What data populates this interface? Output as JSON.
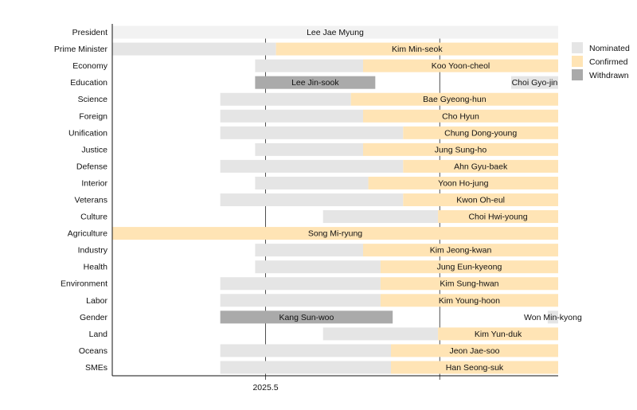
{
  "chart_data": {
    "type": "gantt",
    "title": "",
    "xlabel": "",
    "ylabel": "",
    "xlim": [
      2025.412,
      2025.668
    ],
    "xticks": [
      {
        "value": 2025.5,
        "label": "2025.5"
      },
      {
        "value": 2025.6,
        "label": ""
      }
    ],
    "grid": "vertical lines at ticks",
    "legend_placement": "right",
    "colors": {
      "Incumbent": "#f2f2f2",
      "Nominated": "#e5e5e5",
      "Confirmed": "#ffe4b5",
      "Withdrawn": "#aaaaaa"
    },
    "legend": [
      "Nominated",
      "Confirmed",
      "Withdrawn"
    ],
    "rows": [
      {
        "ministry": "President",
        "segments": [
          {
            "status": "Incumbent",
            "start": 2025.412,
            "end": 2025.668,
            "label": "Lee Jae Myung"
          }
        ]
      },
      {
        "ministry": "Prime Minister",
        "segments": [
          {
            "status": "Nominated",
            "start": 2025.412,
            "end": 2025.506
          },
          {
            "status": "Confirmed",
            "start": 2025.506,
            "end": 2025.668,
            "label": "Kim Min-seok"
          }
        ]
      },
      {
        "ministry": "Economy",
        "segments": [
          {
            "status": "Nominated",
            "start": 2025.494,
            "end": 2025.556
          },
          {
            "status": "Confirmed",
            "start": 2025.556,
            "end": 2025.668,
            "label": "Koo Yoon-cheol"
          }
        ]
      },
      {
        "ministry": "Education",
        "segments": [
          {
            "status": "Withdrawn",
            "start": 2025.494,
            "end": 2025.563,
            "label": "Lee Jin-sook"
          },
          {
            "status": "Nominated",
            "start": 2025.641,
            "end": 2025.668,
            "label": "Choi Gyo-jin"
          }
        ]
      },
      {
        "ministry": "Science",
        "segments": [
          {
            "status": "Nominated",
            "start": 2025.474,
            "end": 2025.549
          },
          {
            "status": "Confirmed",
            "start": 2025.549,
            "end": 2025.668,
            "label": "Bae Gyeong-hun"
          }
        ]
      },
      {
        "ministry": "Foreign",
        "segments": [
          {
            "status": "Nominated",
            "start": 2025.474,
            "end": 2025.556
          },
          {
            "status": "Confirmed",
            "start": 2025.556,
            "end": 2025.668,
            "label": "Cho Hyun"
          }
        ]
      },
      {
        "ministry": "Unification",
        "segments": [
          {
            "status": "Nominated",
            "start": 2025.474,
            "end": 2025.579
          },
          {
            "status": "Confirmed",
            "start": 2025.579,
            "end": 2025.668,
            "label": "Chung Dong-young"
          }
        ]
      },
      {
        "ministry": "Justice",
        "segments": [
          {
            "status": "Nominated",
            "start": 2025.494,
            "end": 2025.556
          },
          {
            "status": "Confirmed",
            "start": 2025.556,
            "end": 2025.668,
            "label": "Jung Sung-ho"
          }
        ]
      },
      {
        "ministry": "Defense",
        "segments": [
          {
            "status": "Nominated",
            "start": 2025.474,
            "end": 2025.579
          },
          {
            "status": "Confirmed",
            "start": 2025.579,
            "end": 2025.668,
            "label": "Ahn Gyu-baek"
          }
        ]
      },
      {
        "ministry": "Interior",
        "segments": [
          {
            "status": "Nominated",
            "start": 2025.494,
            "end": 2025.559
          },
          {
            "status": "Confirmed",
            "start": 2025.559,
            "end": 2025.668,
            "label": "Yoon Ho-jung"
          }
        ]
      },
      {
        "ministry": "Veterans",
        "segments": [
          {
            "status": "Nominated",
            "start": 2025.474,
            "end": 2025.579
          },
          {
            "status": "Confirmed",
            "start": 2025.579,
            "end": 2025.668,
            "label": "Kwon Oh-eul"
          }
        ]
      },
      {
        "ministry": "Culture",
        "segments": [
          {
            "status": "Nominated",
            "start": 2025.533,
            "end": 2025.599
          },
          {
            "status": "Confirmed",
            "start": 2025.599,
            "end": 2025.668,
            "label": "Choi Hwi-young"
          }
        ]
      },
      {
        "ministry": "Agriculture",
        "segments": [
          {
            "status": "Confirmed",
            "start": 2025.412,
            "end": 2025.668,
            "label": "Song Mi-ryung"
          }
        ]
      },
      {
        "ministry": "Industry",
        "segments": [
          {
            "status": "Nominated",
            "start": 2025.494,
            "end": 2025.556
          },
          {
            "status": "Confirmed",
            "start": 2025.556,
            "end": 2025.668,
            "label": "Kim Jeong-kwan"
          }
        ]
      },
      {
        "ministry": "Health",
        "segments": [
          {
            "status": "Nominated",
            "start": 2025.494,
            "end": 2025.566
          },
          {
            "status": "Confirmed",
            "start": 2025.566,
            "end": 2025.668,
            "label": "Jung Eun-kyeong"
          }
        ]
      },
      {
        "ministry": "Environment",
        "segments": [
          {
            "status": "Nominated",
            "start": 2025.474,
            "end": 2025.566
          },
          {
            "status": "Confirmed",
            "start": 2025.566,
            "end": 2025.668,
            "label": "Kim Sung-hwan"
          }
        ]
      },
      {
        "ministry": "Labor",
        "segments": [
          {
            "status": "Nominated",
            "start": 2025.474,
            "end": 2025.566
          },
          {
            "status": "Confirmed",
            "start": 2025.566,
            "end": 2025.668,
            "label": "Kim Young-hoon"
          }
        ]
      },
      {
        "ministry": "Gender",
        "segments": [
          {
            "status": "Withdrawn",
            "start": 2025.474,
            "end": 2025.573,
            "label": "Kang Sun-woo"
          },
          {
            "status": "Nominated",
            "start": 2025.662,
            "end": 2025.668,
            "label": "Won Min-kyong"
          }
        ]
      },
      {
        "ministry": "Land",
        "segments": [
          {
            "status": "Nominated",
            "start": 2025.533,
            "end": 2025.599
          },
          {
            "status": "Confirmed",
            "start": 2025.599,
            "end": 2025.668,
            "label": "Kim Yun-duk"
          }
        ]
      },
      {
        "ministry": "Oceans",
        "segments": [
          {
            "status": "Nominated",
            "start": 2025.474,
            "end": 2025.572
          },
          {
            "status": "Confirmed",
            "start": 2025.572,
            "end": 2025.668,
            "label": "Jeon Jae-soo"
          }
        ]
      },
      {
        "ministry": "SMEs",
        "segments": [
          {
            "status": "Nominated",
            "start": 2025.474,
            "end": 2025.572
          },
          {
            "status": "Confirmed",
            "start": 2025.572,
            "end": 2025.668,
            "label": "Han Seong-suk"
          }
        ]
      }
    ]
  }
}
